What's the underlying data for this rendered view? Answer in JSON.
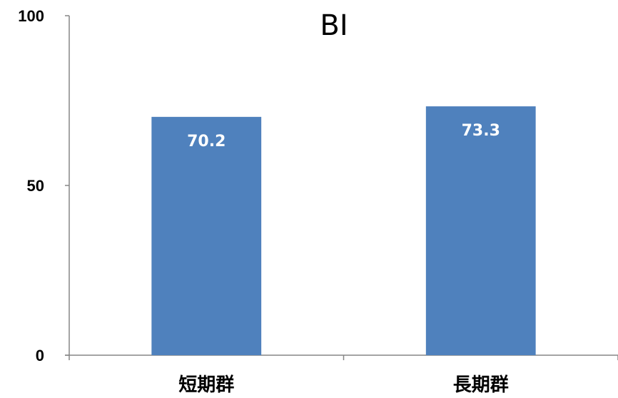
{
  "chart_data": {
    "type": "bar",
    "title": "BI",
    "categories": [
      "短期群",
      "長期群"
    ],
    "values": [
      70.2,
      73.3
    ],
    "data_labels": [
      "70.2",
      "73.3"
    ],
    "ylim": [
      0,
      100
    ],
    "yticks": [
      0,
      50,
      100
    ],
    "ytick_labels": [
      "0",
      "50",
      "100"
    ],
    "xlabel": "",
    "ylabel": "",
    "grid": false,
    "legend": "none",
    "bar_color": "#4f81bd",
    "label_color": "#ffffff"
  }
}
